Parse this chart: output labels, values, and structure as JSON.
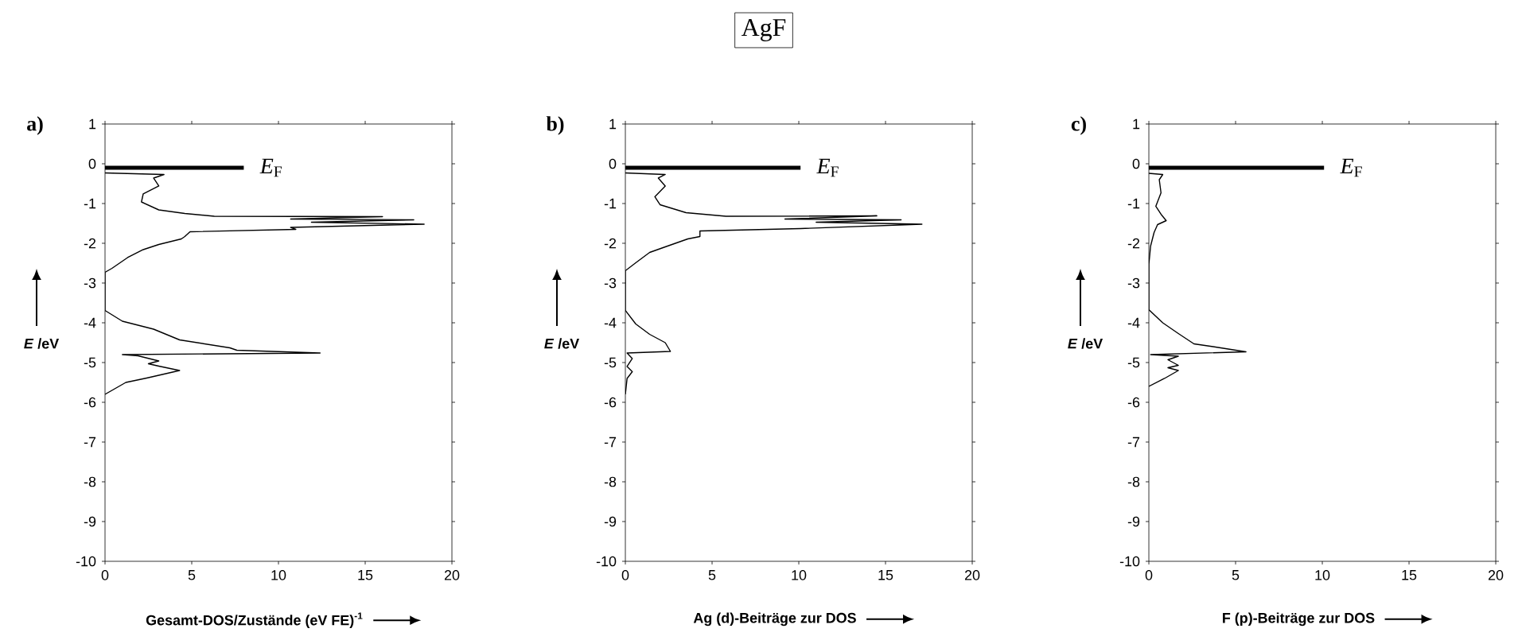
{
  "chart_data": [
    {
      "type": "line",
      "title": "a)",
      "xlabel": "Gesamt-DOS/Zustände (eV FE)$^{-1}$",
      "ylabel": "*E* /eV",
      "xlim": [
        0,
        20
      ],
      "xticks": [
        0,
        5,
        10,
        15,
        20
      ],
      "ylim": [
        -10,
        1
      ],
      "yticks": [
        -10,
        -9,
        -8,
        -7,
        -6,
        -5,
        -4,
        -3,
        -2,
        -1,
        0,
        1
      ],
      "grid": false,
      "series": [
        {
          "color": "#000000",
          "x": [
            0,
            3.4,
            2.8,
            3.1,
            2.2,
            2.1,
            3.1,
            4.6,
            6.3,
            16.0,
            10.7,
            17.8,
            11.9,
            18.4,
            10.7,
            11.0,
            4.9,
            4.6,
            4.4,
            3.1,
            2.2,
            1.3,
            0.4,
            0,
            0,
            1.0,
            2.8,
            4.3,
            7.2,
            7.6,
            12.4,
            1.0,
            1.9,
            3.1,
            2.5,
            3.1,
            4.3,
            2.4,
            1.2,
            0
          ],
          "values": [
            -0.23,
            -0.27,
            -0.36,
            -0.56,
            -0.76,
            -0.96,
            -1.16,
            -1.25,
            -1.32,
            -1.33,
            -1.39,
            -1.41,
            -1.47,
            -1.52,
            -1.6,
            -1.65,
            -1.71,
            -1.83,
            -1.89,
            -2.03,
            -2.16,
            -2.36,
            -2.63,
            -2.73,
            -3.69,
            -3.96,
            -4.16,
            -4.43,
            -4.63,
            -4.69,
            -4.76,
            -4.8,
            -4.83,
            -4.96,
            -5.03,
            -5.09,
            -5.2,
            -5.39,
            -5.5,
            -5.8
          ]
        },
        {
          "name": "*E*$_{F}$",
          "color": "#000000",
          "x": [
            0,
            8.0
          ],
          "values": [
            -0.1,
            -0.1
          ]
        }
      ]
    },
    {
      "type": "line",
      "title": "b)",
      "annotations": [
        "AgF"
      ],
      "xlabel": "Ag (d)-Beiträge zur DOS",
      "ylabel": "*E* /eV",
      "xlim": [
        0,
        20
      ],
      "xticks": [
        0,
        5,
        10,
        15,
        20
      ],
      "ylim": [
        -10,
        1
      ],
      "yticks": [
        -10,
        -9,
        -8,
        -7,
        -6,
        -5,
        -4,
        -3,
        -2,
        -1,
        0,
        1
      ],
      "grid": false,
      "series": [
        {
          "color": "#000000",
          "x": [
            0,
            2.3,
            1.9,
            2.3,
            1.7,
            2.0,
            3.5,
            5.8,
            14.5,
            9.2,
            15.9,
            11.0,
            17.1,
            10.1,
            4.3,
            4.3,
            3.6,
            2.3,
            1.4,
            0.6,
            0,
            0,
            0.6,
            1.4,
            2.3,
            2.6,
            0.1,
            0.4,
            0.1,
            0.4,
            0.1,
            0
          ],
          "values": [
            -0.23,
            -0.27,
            -0.36,
            -0.56,
            -0.83,
            -1.03,
            -1.23,
            -1.32,
            -1.31,
            -1.39,
            -1.41,
            -1.47,
            -1.52,
            -1.63,
            -1.69,
            -1.83,
            -1.89,
            -2.09,
            -2.23,
            -2.49,
            -2.69,
            -3.69,
            -4.03,
            -4.29,
            -4.5,
            -4.72,
            -4.76,
            -4.9,
            -5.1,
            -5.23,
            -5.4,
            -5.8
          ]
        },
        {
          "name": "*E*$_{F}$",
          "color": "#000000",
          "x": [
            0,
            10.1
          ],
          "values": [
            -0.1,
            -0.1
          ]
        }
      ]
    },
    {
      "type": "line",
      "title": "c)",
      "xlabel": "F (p)-Beiträge zur DOS",
      "ylabel": "*E* /eV",
      "xlim": [
        0,
        20
      ],
      "xticks": [
        0,
        5,
        10,
        15,
        20
      ],
      "ylim": [
        -10,
        1
      ],
      "yticks": [
        -10,
        -9,
        -8,
        -7,
        -6,
        -5,
        -4,
        -3,
        -2,
        -1,
        0,
        1
      ],
      "grid": false,
      "series": [
        {
          "color": "#000000",
          "x": [
            0,
            0.8,
            0.6,
            0.7,
            0.4,
            0.7,
            1.0,
            0.5,
            0.3,
            0.1,
            0,
            0,
            0.8,
            1.7,
            2.6,
            3.7,
            5.6,
            0.1,
            1.7,
            1.1,
            1.7,
            1.1,
            1.7,
            0.9,
            0
          ],
          "values": [
            -0.24,
            -0.27,
            -0.4,
            -0.73,
            -1.07,
            -1.27,
            -1.43,
            -1.53,
            -1.73,
            -2.07,
            -2.53,
            -3.67,
            -4.0,
            -4.27,
            -4.53,
            -4.6,
            -4.73,
            -4.8,
            -4.84,
            -4.93,
            -5.07,
            -5.13,
            -5.2,
            -5.4,
            -5.6
          ]
        },
        {
          "name": "*E*$_{F}$",
          "color": "#000000",
          "x": [
            0,
            10.1
          ],
          "values": [
            -0.1,
            -0.1
          ]
        }
      ]
    }
  ]
}
